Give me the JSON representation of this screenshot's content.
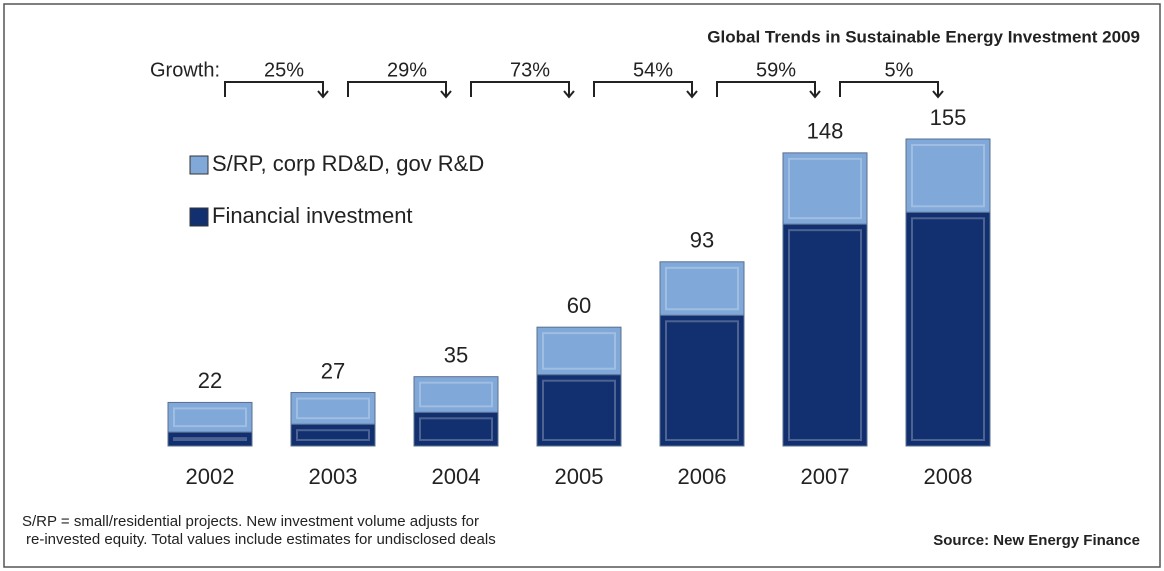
{
  "chart_data": {
    "type": "stacked_bar",
    "title": "Global Trends in Sustainable Energy Investment 2009",
    "growth_label": "Growth:",
    "growth": [
      "25%",
      "29%",
      "73%",
      "54%",
      "59%",
      "5%"
    ],
    "categories": [
      "2002",
      "2003",
      "2004",
      "2005",
      "2006",
      "2007",
      "2008"
    ],
    "series": [
      {
        "name": "Financial investment",
        "color": "#12306f",
        "values": [
          7,
          11,
          17,
          36,
          66,
          112,
          118
        ]
      },
      {
        "name": "S/RP, corp RD&D, gov R&D",
        "color": "#80a8d8",
        "values": [
          15,
          16,
          18,
          24,
          27,
          36,
          37
        ]
      }
    ],
    "totals": [
      22,
      27,
      35,
      60,
      93,
      148,
      155
    ],
    "footnote": [
      "S/RP = small/residential projects. New investment volume adjusts for",
      "re-invested equity. Total values include estimates for undisclosed deals"
    ],
    "source": "Source: New Energy Finance"
  }
}
